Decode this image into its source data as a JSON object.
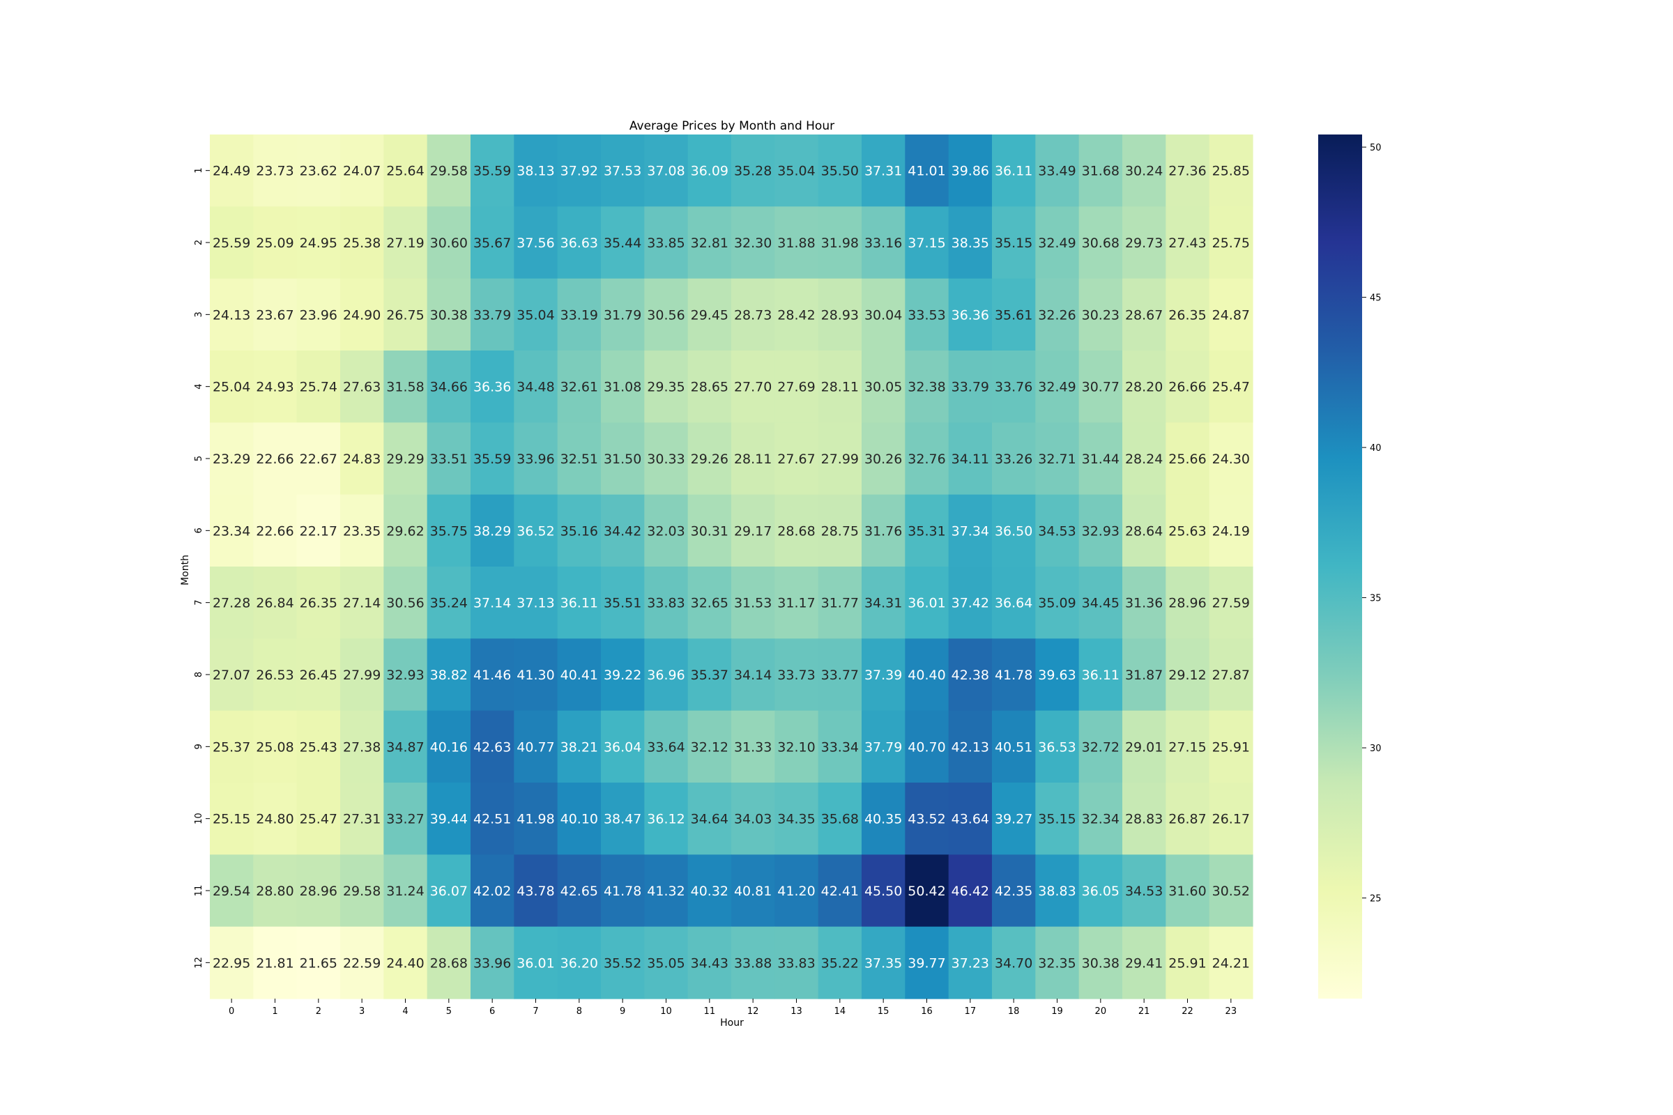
{
  "chart_data": {
    "type": "heatmap",
    "title": "Average Prices by Month and Hour",
    "xlabel": "Hour",
    "ylabel": "Month",
    "x_categories": [
      "0",
      "1",
      "2",
      "3",
      "4",
      "5",
      "6",
      "7",
      "8",
      "9",
      "10",
      "11",
      "12",
      "13",
      "14",
      "15",
      "16",
      "17",
      "18",
      "19",
      "20",
      "21",
      "22",
      "23"
    ],
    "y_categories": [
      "1",
      "2",
      "3",
      "4",
      "5",
      "6",
      "7",
      "8",
      "9",
      "10",
      "11",
      "12"
    ],
    "values": [
      [
        24.49,
        23.73,
        23.62,
        24.07,
        25.64,
        29.58,
        35.59,
        38.13,
        37.92,
        37.53,
        37.08,
        36.09,
        35.28,
        35.04,
        35.5,
        37.31,
        41.01,
        39.86,
        36.11,
        33.49,
        31.68,
        30.24,
        27.36,
        25.85
      ],
      [
        25.59,
        25.09,
        24.95,
        25.38,
        27.19,
        30.6,
        35.67,
        37.56,
        36.63,
        35.44,
        33.85,
        32.81,
        32.3,
        31.88,
        31.98,
        33.16,
        37.15,
        38.35,
        35.15,
        32.49,
        30.68,
        29.73,
        27.43,
        25.75
      ],
      [
        24.13,
        23.67,
        23.96,
        24.9,
        26.75,
        30.38,
        33.79,
        35.04,
        33.19,
        31.79,
        30.56,
        29.45,
        28.73,
        28.42,
        28.93,
        30.04,
        33.53,
        36.36,
        35.61,
        32.26,
        30.23,
        28.67,
        26.35,
        24.87
      ],
      [
        25.04,
        24.93,
        25.74,
        27.63,
        31.58,
        34.66,
        36.36,
        34.48,
        32.61,
        31.08,
        29.35,
        28.65,
        27.7,
        27.69,
        28.11,
        30.05,
        32.38,
        33.79,
        33.76,
        32.49,
        30.77,
        28.2,
        26.66,
        25.47
      ],
      [
        23.29,
        22.66,
        22.67,
        24.83,
        29.29,
        33.51,
        35.59,
        33.96,
        32.51,
        31.5,
        30.33,
        29.26,
        28.11,
        27.67,
        27.99,
        30.26,
        32.76,
        34.11,
        33.26,
        32.71,
        31.44,
        28.24,
        25.66,
        24.3
      ],
      [
        23.34,
        22.66,
        22.17,
        23.35,
        29.62,
        35.75,
        38.29,
        36.52,
        35.16,
        34.42,
        32.03,
        30.31,
        29.17,
        28.68,
        28.75,
        31.76,
        35.31,
        37.34,
        36.5,
        34.53,
        32.93,
        28.64,
        25.63,
        24.19
      ],
      [
        27.28,
        26.84,
        26.35,
        27.14,
        30.56,
        35.24,
        37.14,
        37.13,
        36.11,
        35.51,
        33.83,
        32.65,
        31.53,
        31.17,
        31.77,
        34.31,
        36.01,
        37.42,
        36.64,
        35.09,
        34.45,
        31.36,
        28.96,
        27.59
      ],
      [
        27.07,
        26.53,
        26.45,
        27.99,
        32.93,
        38.82,
        41.46,
        41.3,
        40.41,
        39.22,
        36.96,
        35.37,
        34.14,
        33.73,
        33.77,
        37.39,
        40.4,
        42.38,
        41.78,
        39.63,
        36.11,
        31.87,
        29.12,
        27.87
      ],
      [
        25.37,
        25.08,
        25.43,
        27.38,
        34.87,
        40.16,
        42.63,
        40.77,
        38.21,
        36.04,
        33.64,
        32.12,
        31.33,
        32.1,
        33.34,
        37.79,
        40.7,
        42.13,
        40.51,
        36.53,
        32.72,
        29.01,
        27.15,
        25.91
      ],
      [
        25.15,
        24.8,
        25.47,
        27.31,
        33.27,
        39.44,
        42.51,
        41.98,
        40.1,
        38.47,
        36.12,
        34.64,
        34.03,
        34.35,
        35.68,
        40.35,
        43.52,
        43.64,
        39.27,
        35.15,
        32.34,
        28.83,
        26.87,
        26.17
      ],
      [
        29.54,
        28.8,
        28.96,
        29.58,
        31.24,
        36.07,
        42.02,
        43.78,
        42.65,
        41.78,
        41.32,
        40.32,
        40.81,
        41.2,
        42.41,
        45.5,
        50.42,
        46.42,
        42.35,
        38.83,
        36.05,
        34.53,
        31.6,
        30.52
      ],
      [
        22.95,
        21.81,
        21.65,
        22.59,
        24.4,
        28.68,
        33.96,
        36.01,
        36.2,
        35.52,
        35.05,
        34.43,
        33.88,
        33.83,
        35.22,
        37.35,
        39.77,
        37.23,
        34.7,
        32.35,
        30.38,
        29.41,
        25.91,
        24.21
      ]
    ],
    "colorscale": "YlGnBu",
    "colorbar_ticks": [
      25,
      30,
      35,
      40,
      45,
      50
    ],
    "vmin": 21.65,
    "vmax": 50.42,
    "annotations": "values printed in each cell with two decimals",
    "grid": false
  }
}
